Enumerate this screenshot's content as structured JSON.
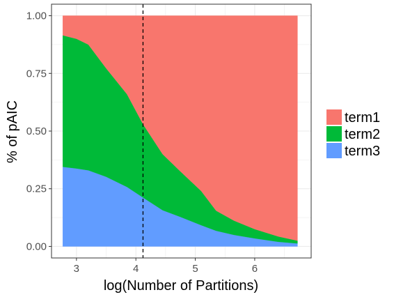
{
  "chart_data": {
    "type": "area",
    "stacked": true,
    "xlabel": "log(Number of Partitions)",
    "ylabel": "% of pAIC",
    "xlim": [
      2.58,
      6.95
    ],
    "ylim": [
      -0.05,
      1.05
    ],
    "xticks": [
      3,
      4,
      5,
      6
    ],
    "yticks": [
      0.0,
      0.25,
      0.5,
      0.75,
      1.0
    ],
    "ytick_labels": [
      "0.00",
      "0.25",
      "0.50",
      "0.75",
      "1.00"
    ],
    "xtick_labels": [
      "3",
      "4",
      "5",
      "6"
    ],
    "vline": {
      "x": 4.12,
      "style": "dashed"
    },
    "grid": true,
    "legend_position": "right",
    "x": [
      2.77,
      3.0,
      3.2,
      3.5,
      3.85,
      4.12,
      4.45,
      4.75,
      5.1,
      5.35,
      5.65,
      6.0,
      6.4,
      6.72
    ],
    "series": [
      {
        "name": "term3",
        "color": "#619CFF",
        "values": [
          0.345,
          0.338,
          0.33,
          0.302,
          0.258,
          0.212,
          0.157,
          0.128,
          0.092,
          0.068,
          0.05,
          0.035,
          0.02,
          0.013
        ]
      },
      {
        "name": "term2",
        "color": "#00BA38",
        "values": [
          0.57,
          0.562,
          0.545,
          0.47,
          0.402,
          0.318,
          0.243,
          0.197,
          0.148,
          0.087,
          0.062,
          0.04,
          0.023,
          0.012
        ]
      },
      {
        "name": "term1",
        "color": "#F8766D",
        "values": [
          0.085,
          0.1,
          0.125,
          0.228,
          0.34,
          0.47,
          0.6,
          0.675,
          0.76,
          0.845,
          0.888,
          0.925,
          0.957,
          0.975
        ]
      }
    ],
    "legend_order": [
      "term1",
      "term2",
      "term3"
    ]
  }
}
